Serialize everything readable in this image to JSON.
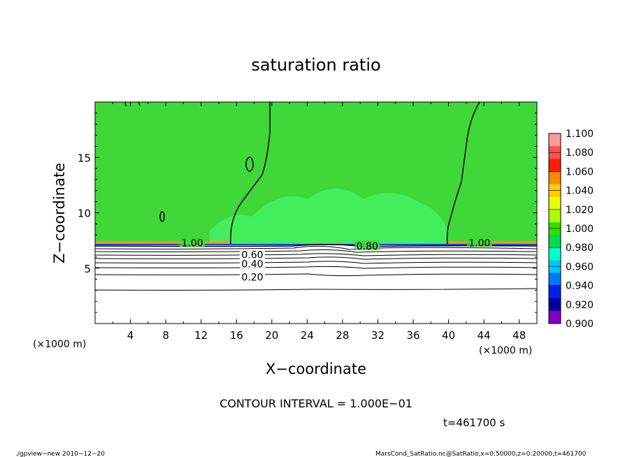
{
  "chart_data": {
    "type": "heatmap",
    "title": "saturation ratio",
    "xlabel": "X−coordinate",
    "ylabel": "Z−coordinate",
    "x_unit_left": "(×1000 m)",
    "x_unit_right": "(×1000 m)",
    "xlim": [
      0,
      50
    ],
    "ylim": [
      0,
      20
    ],
    "x_ticks": [
      4,
      8,
      12,
      16,
      20,
      24,
      28,
      32,
      36,
      40,
      44,
      48
    ],
    "y_ticks": [
      5,
      10,
      15
    ],
    "colorbar": {
      "labels": [
        "1.100",
        "1.080",
        "1.060",
        "1.040",
        "1.020",
        "1.000",
        "0.980",
        "0.960",
        "0.940",
        "0.920",
        "0.900"
      ],
      "colors": [
        "#ff9a9a",
        "#ff5050",
        "#ff2000",
        "#ff8800",
        "#ffcc00",
        "#e6ff00",
        "#aaff00",
        "#33dd00",
        "#00dd55",
        "#00ffcc",
        "#00c8ff",
        "#0077ff",
        "#0020ee",
        "#0000aa",
        "#8000c0"
      ]
    },
    "field_colors": {
      "upper": "#3fd838",
      "lower": "#ffffff",
      "cool_band": "#48ff7a",
      "edge": "#ff8800"
    },
    "contour_labels": [
      {
        "text": "1.00",
        "x": 11,
        "z": 7.3
      },
      {
        "text": "0.80",
        "x": 30.8,
        "z": 7.0
      },
      {
        "text": "1.00",
        "x": 43.5,
        "z": 7.3
      },
      {
        "text": "0.60",
        "x": 17.8,
        "z": 6.2
      },
      {
        "text": "0.40",
        "x": 17.8,
        "z": 5.4
      },
      {
        "text": "0.20",
        "x": 17.8,
        "z": 4.2
      }
    ],
    "contour_interval_text": "CONTOUR INTERVAL = 1.000E−01",
    "time_text": "t=461700 s"
  },
  "footer": {
    "left": "./gpview−new   2010−12−20",
    "right": "MarsCond_SatRatio.nc@SatRatio,x=0:50000,z=0:20000,t=461700"
  }
}
